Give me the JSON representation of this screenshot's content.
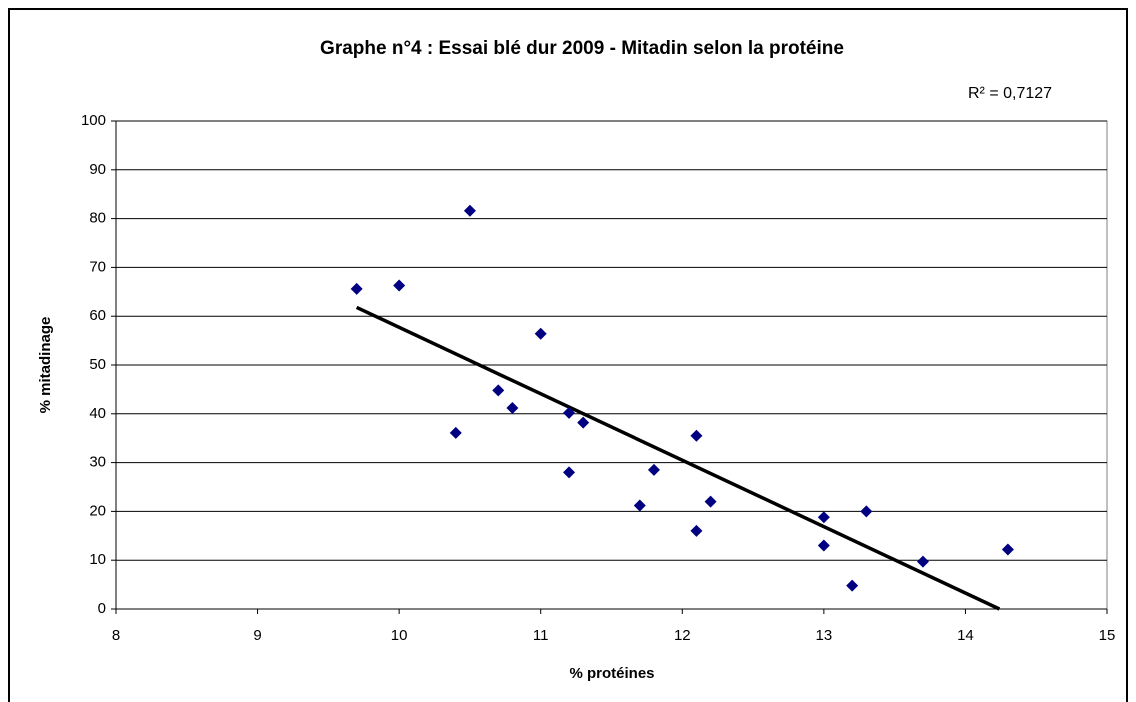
{
  "chart_data": {
    "type": "scatter",
    "title": "Graphe n°4 : Essai blé dur 2009 - Mitadin selon la protéine",
    "annotation": "R² = 0,7127",
    "x_label": "% protéines",
    "y_label": "% mitadinage",
    "x": [
      9.7,
      10.0,
      10.5,
      10.4,
      10.7,
      10.8,
      11.0,
      11.2,
      11.2,
      11.3,
      11.7,
      11.8,
      12.1,
      12.1,
      12.2,
      13.0,
      13.0,
      13.2,
      13.3,
      13.7,
      14.3
    ],
    "values": [
      65.6,
      66.3,
      81.6,
      36.1,
      44.8,
      41.2,
      56.4,
      40.2,
      28.0,
      38.2,
      21.2,
      28.5,
      35.5,
      16.0,
      22.0,
      18.8,
      13.0,
      4.8,
      20.0,
      9.7,
      12.2
    ],
    "color": "#000080",
    "trendline": {
      "x": [
        9.7,
        14.24
      ],
      "values": [
        61.8,
        0
      ],
      "color": "#000000"
    },
    "xlim": [
      8,
      15
    ],
    "xticks": [
      8,
      9,
      10,
      11,
      12,
      13,
      14,
      15
    ],
    "ylim": [
      0,
      100
    ],
    "yticks": [
      0,
      10,
      20,
      30,
      40,
      50,
      60,
      70,
      80,
      90,
      100
    ],
    "grid": true
  }
}
